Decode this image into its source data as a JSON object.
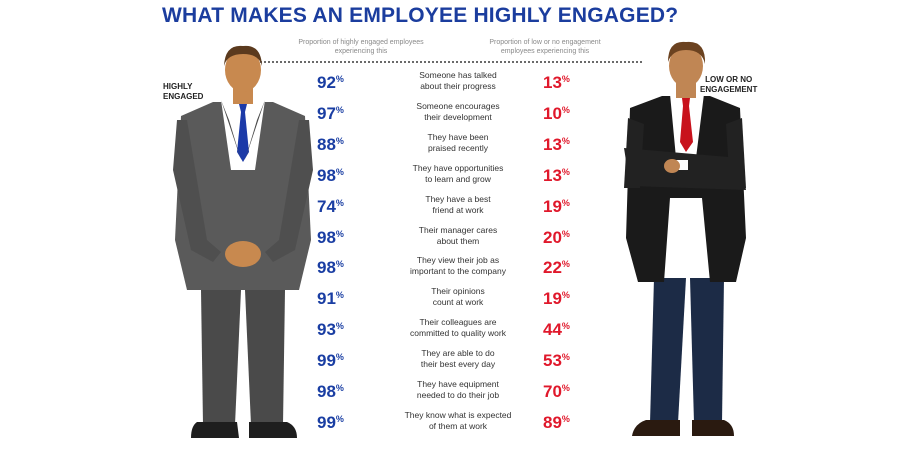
{
  "title": "WHAT MAKES AN EMPLOYEE HIGHLY ENGAGED?",
  "column_headers": {
    "left": "Proportion of highly engaged employees experiencing this",
    "right": "Proportion of low or no engagement employees experiencing this"
  },
  "side_labels": {
    "left": [
      "HIGHLY",
      "ENGAGED"
    ],
    "right": [
      "LOW OR NO",
      "ENGAGEMENT"
    ]
  },
  "colors": {
    "title": "#1b3d9e",
    "high": "#1a3ea3",
    "low": "#e0182b"
  },
  "chart_data": {
    "type": "table",
    "title": "WHAT MAKES AN EMPLOYEE HIGHLY ENGAGED?",
    "unit": "%",
    "series": [
      {
        "name": "Proportion of highly engaged employees experiencing this",
        "values": [
          92,
          97,
          88,
          98,
          74,
          98,
          98,
          91,
          93,
          99,
          98,
          99
        ]
      },
      {
        "name": "Proportion of low or no engagement employees experiencing this",
        "values": [
          13,
          10,
          13,
          13,
          19,
          20,
          22,
          19,
          44,
          53,
          70,
          89
        ]
      }
    ],
    "rows": [
      {
        "factor": [
          "Someone has talked",
          "about their progress"
        ],
        "high": 92,
        "low": 13
      },
      {
        "factor": [
          "Someone encourages",
          "their development"
        ],
        "high": 97,
        "low": 10
      },
      {
        "factor": [
          "They have been",
          "praised recently"
        ],
        "high": 88,
        "low": 13
      },
      {
        "factor": [
          "They have opportunities",
          "to learn and grow"
        ],
        "high": 98,
        "low": 13
      },
      {
        "factor": [
          "They have a best",
          "friend at work"
        ],
        "high": 74,
        "low": 19
      },
      {
        "factor": [
          "Their manager cares",
          "about them"
        ],
        "high": 98,
        "low": 20
      },
      {
        "factor": [
          "They view their job as",
          "important to the company"
        ],
        "high": 98,
        "low": 22
      },
      {
        "factor": [
          "Their opinions",
          "count at work"
        ],
        "high": 91,
        "low": 19
      },
      {
        "factor": [
          "Their colleagues are",
          "committed to quality work"
        ],
        "high": 93,
        "low": 44
      },
      {
        "factor": [
          "They are able to do",
          "their best every day"
        ],
        "high": 99,
        "low": 53
      },
      {
        "factor": [
          "They have equipment",
          "needed to do their job"
        ],
        "high": 98,
        "low": 70
      },
      {
        "factor": [
          "They know what is expected",
          "of them at work"
        ],
        "high": 99,
        "low": 89
      }
    ]
  }
}
